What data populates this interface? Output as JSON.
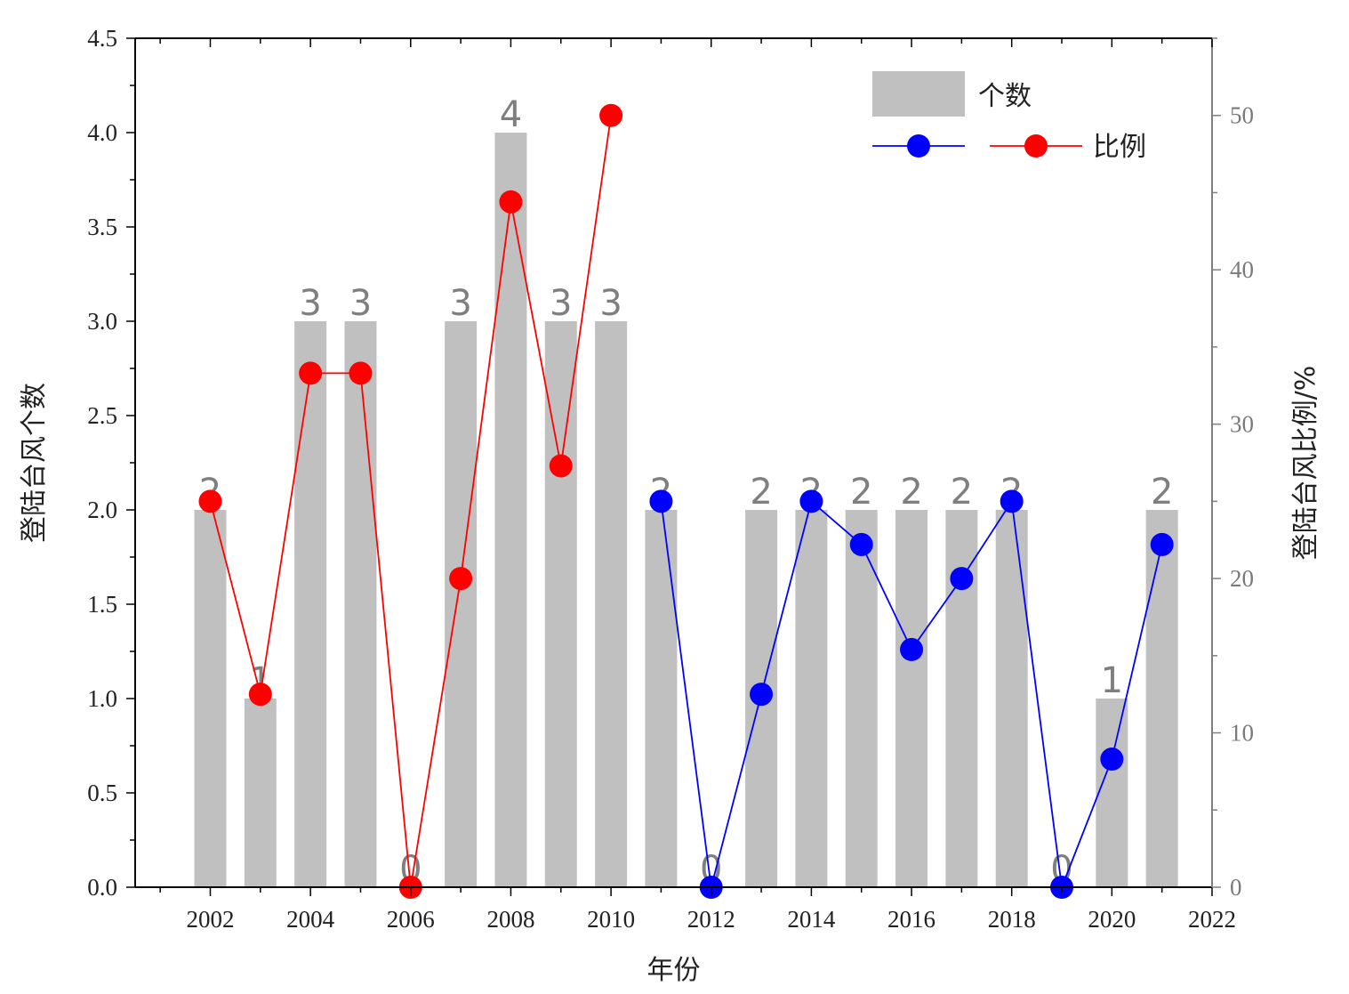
{
  "chart_data": {
    "type": "bar+line",
    "x_categories": [
      2002,
      2003,
      2004,
      2005,
      2006,
      2007,
      2008,
      2009,
      2010,
      2011,
      2012,
      2013,
      2014,
      2015,
      2016,
      2017,
      2018,
      2019,
      2020,
      2021
    ],
    "bars": {
      "name": "个数",
      "color": "#c0c0c0",
      "values": [
        2,
        1,
        3,
        3,
        0,
        3,
        4,
        3,
        3,
        2,
        0,
        2,
        2,
        2,
        2,
        2,
        2,
        0,
        1,
        2
      ],
      "labels": [
        "2",
        "1",
        "3",
        "3",
        "0",
        "3",
        "4",
        "3",
        "3",
        "2",
        "0",
        "2",
        "2",
        "2",
        "2",
        "2",
        "2",
        "0",
        "1",
        "2"
      ]
    },
    "lines": [
      {
        "name": "比例",
        "color": "#ff0000",
        "x": [
          2002,
          2003,
          2004,
          2005,
          2006,
          2007,
          2008,
          2009,
          2010
        ],
        "values": [
          25.0,
          12.5,
          33.3,
          33.3,
          0.0,
          20.0,
          44.4,
          27.3,
          50.0
        ]
      },
      {
        "name": "",
        "color": "#0000ff",
        "x": [
          2011,
          2012,
          2013,
          2014,
          2015,
          2016,
          2017,
          2018,
          2019,
          2020,
          2021
        ],
        "values": [
          25.0,
          0.0,
          12.5,
          25.0,
          22.2,
          15.4,
          20.0,
          25.0,
          0.0,
          8.3,
          22.2
        ]
      }
    ],
    "xlabel": "年份",
    "ylabel_left": "登陆台风个数",
    "ylabel_right": "登陆台风比例/%",
    "xlim": [
      2000.5,
      2022
    ],
    "ylim_left": [
      0,
      4.5
    ],
    "ylim_right": [
      0,
      55
    ],
    "x_ticks": [
      "2002",
      "2004",
      "2006",
      "2008",
      "2010",
      "2012",
      "2014",
      "2016",
      "2018",
      "2020",
      "2022"
    ],
    "y_left_ticks": [
      "0.0",
      "0.5",
      "1.0",
      "1.5",
      "2.0",
      "2.5",
      "3.0",
      "3.5",
      "4.0",
      "4.5"
    ],
    "y_right_ticks": [
      "0",
      "10",
      "20",
      "30",
      "40",
      "50"
    ],
    "legend": {
      "position": "top-right",
      "bar_label": "个数",
      "line_label": "比例"
    },
    "grid": false
  }
}
